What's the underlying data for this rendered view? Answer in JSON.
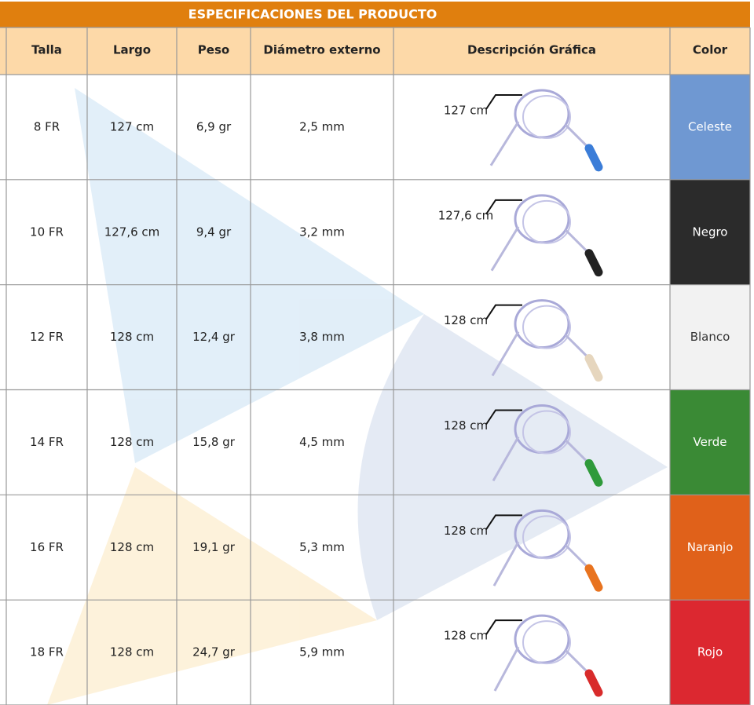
{
  "header": {
    "title": "ESPECIFICACIONES DEL PRODUCTO"
  },
  "table": {
    "columns": [
      "Talla",
      "Largo",
      "Peso",
      "Diámetro externo",
      "Descripción Gráfica",
      "Color"
    ],
    "rows": [
      [
        "8 FR",
        "127 cm",
        "6,9 gr",
        "2,5 mm",
        "127 cm",
        "Celeste"
      ],
      [
        "10 FR",
        "127,6 cm",
        "9,4 gr",
        "3,2 mm",
        "127,6 cm",
        "Negro"
      ],
      [
        "12 FR",
        "128 cm",
        "12,4 gr",
        "3,8 mm",
        "128 cm",
        "Blanco"
      ],
      [
        "14 FR",
        "128 cm",
        "15,8 gr",
        "4,5 mm",
        "128 cm",
        "Verde"
      ],
      [
        "16 FR",
        "128 cm",
        "19,1 gr",
        "5,3 mm",
        "128 cm",
        "Naranjo"
      ],
      [
        "18 FR",
        "128 cm",
        "24,7 gr",
        "5,9 mm",
        "128 cm",
        "Rojo"
      ]
    ]
  }
}
